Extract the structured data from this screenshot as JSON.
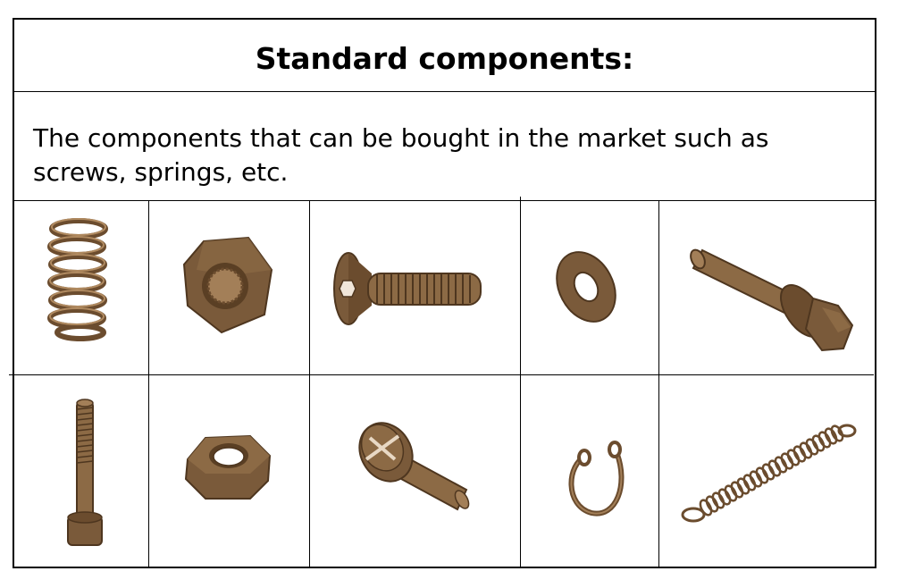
{
  "header": {
    "title": "Standard components:"
  },
  "description": {
    "text": "The components that can be bought in the market such as screws, springs, etc."
  },
  "components": [
    {
      "icon": "compression-spring-icon"
    },
    {
      "icon": "hex-nut-icon"
    },
    {
      "icon": "countersunk-screw-icon"
    },
    {
      "icon": "flat-washer-icon"
    },
    {
      "icon": "flange-bolt-icon"
    },
    {
      "icon": "socket-head-cap-screw-icon"
    },
    {
      "icon": "thin-hex-nut-icon"
    },
    {
      "icon": "slotted-cheese-head-screw-icon"
    },
    {
      "icon": "internal-retaining-ring-icon"
    },
    {
      "icon": "extension-spring-icon"
    }
  ],
  "colors": {
    "part_fill": "#7a5a3a",
    "part_dark": "#4e361f",
    "part_light": "#a37f58"
  }
}
